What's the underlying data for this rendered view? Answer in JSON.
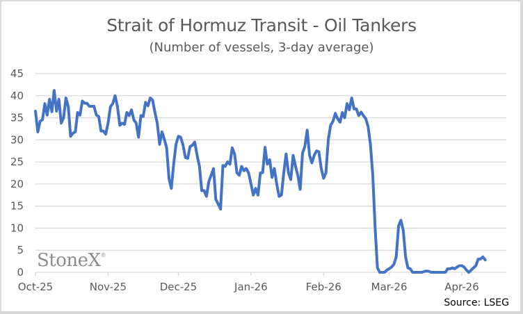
{
  "chart_data": {
    "type": "line",
    "title": "Strait of Hormuz Transit - Oil Tankers",
    "subtitle": "(Number of vessels, 3-day average)",
    "xlabel": "",
    "ylabel": "",
    "ylim": [
      0,
      45
    ],
    "yticks": [
      0,
      5,
      10,
      15,
      20,
      25,
      30,
      35,
      40,
      45
    ],
    "xticks": [
      "Oct-25",
      "Nov-25",
      "Dec-25",
      "Jan-26",
      "Feb-26",
      "Mar-26",
      "Apr-26"
    ],
    "grid": true,
    "legend": null,
    "source": "Source: LSEG",
    "watermark": "StoneX",
    "line_color": "#4472c4",
    "series": [
      {
        "name": "Oil tankers transiting (3-day avg)",
        "x_day_offset_from_2025_10_01": [
          0,
          1,
          2,
          3,
          4,
          5,
          6,
          7,
          8,
          9,
          10,
          11,
          12,
          13,
          14,
          15,
          16,
          17,
          18,
          19,
          20,
          21,
          22,
          23,
          24,
          25,
          26,
          27,
          28,
          29,
          30,
          31,
          32,
          33,
          34,
          35,
          36,
          37,
          38,
          39,
          40,
          41,
          42,
          43,
          44,
          45,
          46,
          47,
          48,
          49,
          50,
          51,
          52,
          53,
          54,
          55,
          56,
          57,
          58,
          59,
          60,
          61,
          62,
          63,
          64,
          65,
          66,
          67,
          68,
          69,
          70,
          71,
          72,
          73,
          74,
          75,
          76,
          77,
          78,
          79,
          80,
          81,
          82,
          83,
          84,
          85,
          86,
          87,
          88,
          89,
          90,
          91,
          92,
          93,
          94,
          95,
          96,
          97,
          98,
          99,
          100,
          101,
          102,
          103,
          104,
          105,
          106,
          107,
          108,
          109,
          110,
          111,
          112,
          113,
          114,
          115,
          116,
          117,
          118,
          119,
          120,
          121,
          122,
          123,
          124,
          125,
          126,
          127,
          128,
          129,
          130,
          131,
          132,
          133,
          134,
          135,
          136,
          137,
          138,
          139,
          140,
          141,
          142,
          143,
          144,
          145,
          146,
          147,
          148,
          149,
          150,
          151,
          152,
          153,
          154,
          155,
          156,
          157,
          158,
          159,
          160,
          161,
          162,
          163,
          164,
          165,
          166,
          167,
          168,
          169,
          170,
          171,
          172,
          173,
          174,
          175,
          176,
          177,
          178,
          179,
          180,
          181,
          182,
          183,
          184,
          185,
          186,
          187,
          188,
          189,
          190,
          191,
          192,
          193,
          194,
          195
        ],
        "values": [
          36.5,
          31.8,
          34.2,
          34.6,
          38.2,
          35.6,
          39.2,
          36.4,
          41.2,
          36.5,
          39.2,
          33.8,
          35.0,
          39.5,
          37.5,
          30.8,
          31.5,
          31.8,
          36.2,
          35.6,
          38.8,
          38.3,
          38.3,
          37.6,
          37.6,
          37.6,
          35.6,
          35.3,
          32.0,
          32.0,
          31.3,
          33.8,
          37.5,
          38.2,
          40.0,
          37.5,
          33.3,
          33.8,
          33.5,
          36.2,
          35.5,
          36.8,
          34.5,
          33.8,
          30.6,
          35.5,
          35.3,
          38.5,
          37.7,
          39.5,
          39.0,
          36.2,
          33.8,
          29.0,
          31.8,
          30.2,
          28.2,
          21.2,
          19.0,
          24.5,
          29.0,
          30.8,
          30.6,
          28.8,
          26.0,
          25.8,
          28.5,
          28.8,
          29.5,
          26.5,
          24.0,
          18.5,
          18.5,
          17.2,
          20.5,
          22.0,
          23.5,
          16.5,
          15.5,
          14.3,
          24.2,
          24.0,
          25.0,
          24.5,
          28.2,
          26.8,
          22.5,
          22.0,
          24.0,
          23.0,
          23.5,
          22.5,
          20.0,
          17.5,
          19.0,
          17.5,
          22.5,
          22.6,
          28.3,
          24.5,
          25.5,
          21.5,
          23.5,
          20.0,
          17.2,
          17.5,
          22.5,
          26.8,
          22.5,
          21.0,
          26.5,
          24.0,
          22.0,
          18.8,
          27.0,
          28.5,
          32.2,
          26.5,
          24.8,
          26.5,
          27.5,
          27.3,
          23.5,
          21.3,
          22.5,
          30.0,
          33.3,
          34.2,
          36.0,
          34.8,
          34.0,
          36.2,
          35.0,
          38.2,
          36.8,
          39.5,
          37.0,
          37.0,
          35.5,
          36.3,
          35.5,
          34.8,
          33.0,
          29.0,
          22.0,
          10.0,
          1.0,
          0.0,
          0.0,
          0.0,
          0.5,
          0.8,
          1.2,
          1.8,
          3.5,
          10.5,
          11.8,
          9.5,
          3.5,
          1.0,
          0.8,
          0.0,
          0.0,
          0.0,
          0.0,
          0.0,
          0.2,
          0.3,
          0.2,
          0.0,
          0.0,
          0.0,
          0.0,
          0.0,
          0.0,
          0.0,
          0.8,
          0.8,
          1.0,
          0.8,
          1.2,
          1.5,
          1.5,
          1.2,
          0.5,
          0.0,
          0.5,
          1.0,
          1.5,
          3.0,
          3.0,
          3.5,
          2.8
        ]
      }
    ]
  }
}
